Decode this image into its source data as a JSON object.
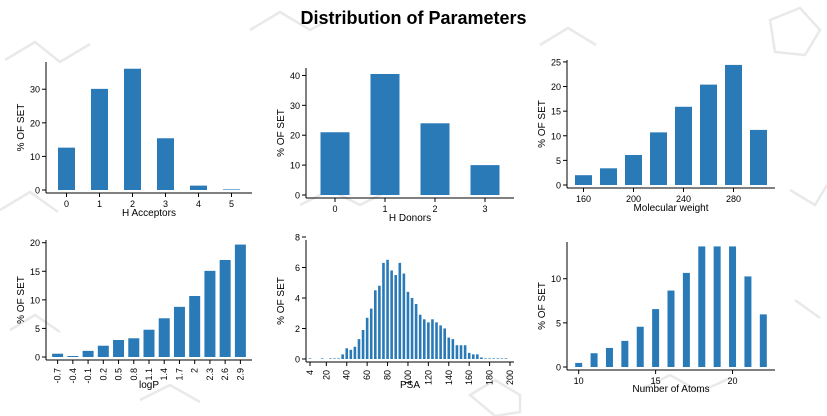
{
  "page": {
    "title": "Distribution of Parameters",
    "bar_color": "#2a7ab8",
    "background_motif": "faint grey molecular-structure line drawings"
  },
  "chart_data": [
    {
      "type": "bar",
      "xlabel": "H Acceptors",
      "ylabel": "% OF SET",
      "x_ticks": [
        "0",
        "1",
        "2",
        "3",
        "4",
        "5"
      ],
      "categories": [
        0,
        1,
        2,
        3,
        4,
        5
      ],
      "values": [
        13.5,
        31,
        37,
        16.3,
        2.2,
        0.1
      ],
      "yticks": [
        0,
        10,
        20,
        30
      ],
      "ylim": [
        0,
        39
      ],
      "grid": false
    },
    {
      "type": "bar",
      "xlabel": "H Donors",
      "ylabel": "% OF SET",
      "x_ticks": [
        "0",
        "1",
        "2",
        "3"
      ],
      "categories": [
        0,
        1,
        2,
        3
      ],
      "values": [
        22,
        41.5,
        25,
        11
      ],
      "yticks": [
        0,
        10,
        20,
        30,
        40
      ],
      "ylim": [
        0,
        43.5
      ],
      "grid": false
    },
    {
      "type": "bar",
      "xlabel": "Molecular weight",
      "ylabel": "% OF SET",
      "x_ticks": [
        "160",
        "200",
        "240",
        "280"
      ],
      "categories": [
        160,
        180,
        200,
        220,
        240,
        260,
        280,
        300
      ],
      "values": [
        2.6,
        4,
        6.7,
        11.3,
        16.5,
        21,
        25,
        11.8
      ],
      "yticks": [
        0,
        5,
        10,
        15,
        20,
        25
      ],
      "ylim": [
        0,
        26
      ],
      "grid": false
    },
    {
      "type": "bar",
      "xlabel": "logP",
      "ylabel": "% OF SET",
      "x_ticks": [
        "-0.7",
        "-0.4",
        "-0.1",
        "0.2",
        "0.5",
        "0.8",
        "1.1",
        "1.4",
        "1.7",
        "2",
        "2.3",
        "2.6",
        "2.9"
      ],
      "categories": [
        "-0.7",
        "-0.4",
        "-0.1",
        "0.2",
        "0.5",
        "0.8",
        "1.1",
        "1.4",
        "1.7",
        "2",
        "2.3",
        "2.6",
        "2.9"
      ],
      "values": [
        1.1,
        0.7,
        1.6,
        2.5,
        3.5,
        3.8,
        5.3,
        7.3,
        9.3,
        11.2,
        15.6,
        17.5,
        20.2
      ],
      "yticks": [
        0,
        5,
        10,
        15,
        20
      ],
      "ylim": [
        0,
        21
      ],
      "grid": false
    },
    {
      "type": "bar",
      "xlabel": "PSA",
      "ylabel": "% OF SET",
      "x_ticks": [
        "4",
        "20",
        "40",
        "60",
        "80",
        "100",
        "120",
        "140",
        "160",
        "180",
        "200"
      ],
      "x_tick_values": [
        4,
        20,
        40,
        60,
        80,
        100,
        120,
        140,
        160,
        180,
        200
      ],
      "x_range": [
        4,
        200
      ],
      "x": [
        4,
        16,
        24,
        28,
        32,
        36,
        40,
        44,
        48,
        52,
        56,
        60,
        64,
        68,
        72,
        76,
        80,
        84,
        88,
        92,
        96,
        100,
        104,
        108,
        112,
        116,
        120,
        124,
        128,
        132,
        136,
        140,
        144,
        148,
        152,
        156,
        160,
        164,
        168,
        172,
        176,
        180,
        184,
        188,
        192,
        196
      ],
      "values": [
        0.05,
        0.05,
        0.1,
        0.1,
        0.2,
        0.5,
        0.9,
        0.8,
        1,
        1.5,
        2.1,
        2.9,
        3.5,
        4.7,
        5,
        6.5,
        6.7,
        6,
        5.7,
        6.5,
        5.8,
        4.6,
        4.2,
        3.8,
        3.1,
        2.8,
        2.6,
        2.8,
        2.6,
        2.4,
        2.2,
        1.6,
        1.5,
        1.1,
        1.1,
        1.1,
        0.6,
        0.5,
        0.5,
        0.3,
        0.2,
        0.2,
        0.2,
        0.1,
        0.05,
        0.05
      ],
      "yticks": [
        0,
        2,
        4,
        6,
        8
      ],
      "ylim": [
        0,
        8
      ],
      "grid": false
    },
    {
      "type": "bar",
      "xlabel": "Number of Atoms",
      "ylabel": "% OF SET",
      "x_ticks": [
        "10",
        "15",
        "20"
      ],
      "x_tick_values": [
        10,
        15,
        20
      ],
      "x_range": [
        9.5,
        22.5
      ],
      "x": [
        10,
        11,
        12,
        13,
        14,
        15,
        16,
        17,
        18,
        19,
        20,
        21,
        22
      ],
      "values": [
        0.8,
        1.9,
        2.5,
        3.3,
        4.9,
        6.9,
        9,
        11,
        14,
        14,
        14,
        10.6,
        6.3
      ],
      "yticks": [
        0,
        5,
        10
      ],
      "ylim": [
        0,
        14.5
      ],
      "grid": false
    }
  ]
}
